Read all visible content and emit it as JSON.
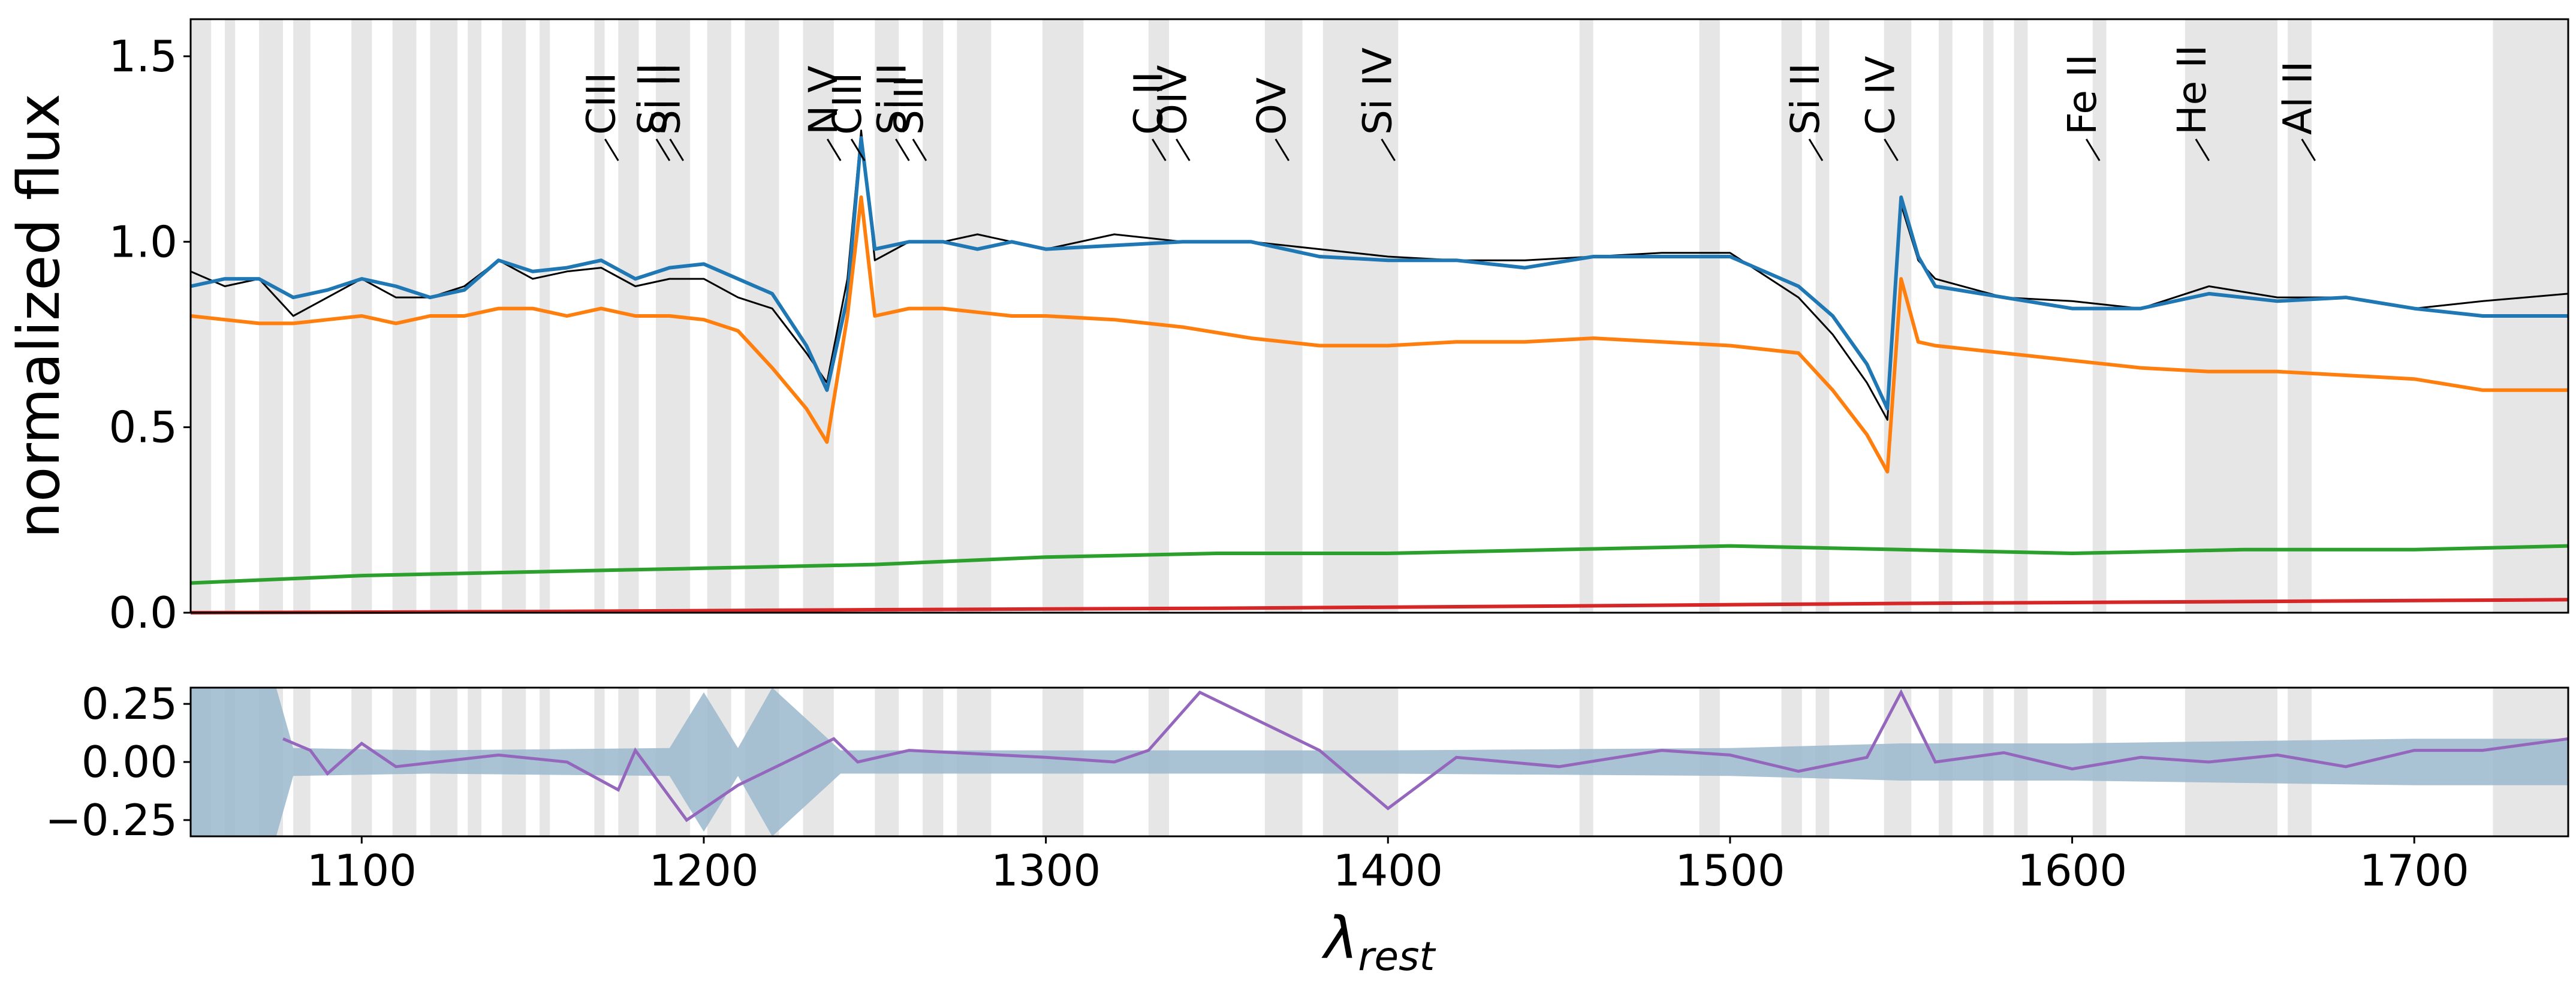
{
  "chart_data": [
    {
      "type": "line",
      "ylabel": "normalized flux",
      "xlim": [
        1050,
        1745
      ],
      "ylim": [
        0,
        1.6
      ],
      "yticks": [
        {
          "value": 0.0,
          "label": "0.0"
        },
        {
          "value": 0.5,
          "label": "0.5"
        },
        {
          "value": 1.0,
          "label": "1.0"
        },
        {
          "value": 1.5,
          "label": "1.5"
        }
      ],
      "grid": false,
      "masked_regions": [
        [
          1050,
          1056
        ],
        [
          1060,
          1063
        ],
        [
          1070,
          1077
        ],
        [
          1080,
          1085
        ],
        [
          1097,
          1103
        ],
        [
          1109,
          1116
        ],
        [
          1120,
          1128
        ],
        [
          1131,
          1135
        ],
        [
          1141,
          1148
        ],
        [
          1152,
          1155
        ],
        [
          1168,
          1171
        ],
        [
          1175,
          1181
        ],
        [
          1186,
          1196
        ],
        [
          1201,
          1208
        ],
        [
          1212,
          1222
        ],
        [
          1229,
          1238
        ],
        [
          1250,
          1257
        ],
        [
          1264,
          1270
        ],
        [
          1274,
          1284
        ],
        [
          1299,
          1311
        ],
        [
          1330,
          1336
        ],
        [
          1364,
          1375
        ],
        [
          1381,
          1403
        ],
        [
          1456,
          1460
        ],
        [
          1491,
          1497
        ],
        [
          1515,
          1521
        ],
        [
          1525,
          1529
        ],
        [
          1545,
          1553
        ],
        [
          1561,
          1565
        ],
        [
          1574,
          1577
        ],
        [
          1583,
          1587
        ],
        [
          1606,
          1610
        ],
        [
          1633,
          1660
        ],
        [
          1663,
          1670
        ],
        [
          1723,
          1745
        ]
      ],
      "line_markers": [
        {
          "label": "CIII",
          "wavelength": 1175
        },
        {
          "label": "Si II",
          "wavelength": 1190
        },
        {
          "label": "Si II",
          "wavelength": 1194
        },
        {
          "label": "N V",
          "wavelength": 1240
        },
        {
          "label": "CIII",
          "wavelength": 1247
        },
        {
          "label": "Si II",
          "wavelength": 1260
        },
        {
          "label": "SiII",
          "wavelength": 1265
        },
        {
          "label": "C II",
          "wavelength": 1335
        },
        {
          "label": "OIV",
          "wavelength": 1342
        },
        {
          "label": "OV",
          "wavelength": 1371
        },
        {
          "label": "Si IV",
          "wavelength": 1402
        },
        {
          "label": "Si II",
          "wavelength": 1527
        },
        {
          "label": "C IV",
          "wavelength": 1549
        },
        {
          "label": "Fe II",
          "wavelength": 1608
        },
        {
          "label": "He II",
          "wavelength": 1640
        },
        {
          "label": "Al II",
          "wavelength": 1671
        }
      ],
      "series": [
        {
          "color": "#000000",
          "x": [
            1050,
            1060,
            1070,
            1080,
            1090,
            1100,
            1110,
            1120,
            1130,
            1140,
            1150,
            1160,
            1170,
            1180,
            1190,
            1200,
            1210,
            1220,
            1230,
            1236,
            1242,
            1246,
            1250,
            1260,
            1270,
            1280,
            1290,
            1300,
            1320,
            1340,
            1360,
            1380,
            1400,
            1420,
            1440,
            1460,
            1480,
            1500,
            1520,
            1530,
            1540,
            1546,
            1550,
            1555,
            1560,
            1580,
            1600,
            1620,
            1640,
            1660,
            1680,
            1700,
            1720,
            1745
          ],
          "y": [
            0.92,
            0.88,
            0.9,
            0.8,
            0.85,
            0.9,
            0.85,
            0.85,
            0.88,
            0.95,
            0.9,
            0.92,
            0.93,
            0.88,
            0.9,
            0.9,
            0.85,
            0.82,
            0.7,
            0.62,
            0.9,
            1.3,
            0.95,
            1.0,
            1.0,
            1.02,
            1.0,
            0.98,
            1.02,
            1.0,
            1.0,
            0.98,
            0.96,
            0.95,
            0.95,
            0.96,
            0.97,
            0.97,
            0.85,
            0.75,
            0.62,
            0.52,
            1.1,
            0.95,
            0.9,
            0.85,
            0.84,
            0.82,
            0.88,
            0.85,
            0.85,
            0.82,
            0.84,
            0.86
          ]
        },
        {
          "color": "#1f77b4",
          "x": [
            1050,
            1060,
            1070,
            1080,
            1090,
            1100,
            1110,
            1120,
            1130,
            1140,
            1150,
            1160,
            1170,
            1180,
            1190,
            1200,
            1210,
            1220,
            1230,
            1236,
            1242,
            1246,
            1250,
            1260,
            1270,
            1280,
            1290,
            1300,
            1320,
            1340,
            1360,
            1380,
            1400,
            1420,
            1440,
            1460,
            1480,
            1500,
            1520,
            1530,
            1540,
            1546,
            1550,
            1555,
            1560,
            1580,
            1600,
            1620,
            1640,
            1660,
            1680,
            1700,
            1720,
            1745
          ],
          "y": [
            0.88,
            0.9,
            0.9,
            0.85,
            0.87,
            0.9,
            0.88,
            0.85,
            0.87,
            0.95,
            0.92,
            0.93,
            0.95,
            0.9,
            0.93,
            0.94,
            0.9,
            0.86,
            0.72,
            0.6,
            0.85,
            1.28,
            0.98,
            1.0,
            1.0,
            0.98,
            1.0,
            0.98,
            0.99,
            1.0,
            1.0,
            0.96,
            0.95,
            0.95,
            0.93,
            0.96,
            0.96,
            0.96,
            0.88,
            0.8,
            0.67,
            0.55,
            1.12,
            0.96,
            0.88,
            0.85,
            0.82,
            0.82,
            0.86,
            0.84,
            0.85,
            0.82,
            0.8,
            0.8
          ]
        },
        {
          "color": "#ff7f0e",
          "x": [
            1050,
            1060,
            1070,
            1080,
            1090,
            1100,
            1110,
            1120,
            1130,
            1140,
            1150,
            1160,
            1170,
            1180,
            1190,
            1200,
            1210,
            1220,
            1230,
            1236,
            1242,
            1246,
            1250,
            1260,
            1270,
            1280,
            1290,
            1300,
            1320,
            1340,
            1360,
            1380,
            1400,
            1420,
            1440,
            1460,
            1480,
            1500,
            1520,
            1530,
            1540,
            1546,
            1550,
            1555,
            1560,
            1580,
            1600,
            1620,
            1640,
            1660,
            1680,
            1700,
            1720,
            1745
          ],
          "y": [
            0.8,
            0.79,
            0.78,
            0.78,
            0.79,
            0.8,
            0.78,
            0.8,
            0.8,
            0.82,
            0.82,
            0.8,
            0.82,
            0.8,
            0.8,
            0.79,
            0.76,
            0.66,
            0.55,
            0.46,
            0.8,
            1.12,
            0.8,
            0.82,
            0.82,
            0.81,
            0.8,
            0.8,
            0.79,
            0.77,
            0.74,
            0.72,
            0.72,
            0.73,
            0.73,
            0.74,
            0.73,
            0.72,
            0.7,
            0.6,
            0.48,
            0.38,
            0.9,
            0.73,
            0.72,
            0.7,
            0.68,
            0.66,
            0.65,
            0.65,
            0.64,
            0.63,
            0.6,
            0.6
          ]
        },
        {
          "color": "#2ca02c",
          "x": [
            1050,
            1100,
            1150,
            1200,
            1250,
            1300,
            1350,
            1400,
            1450,
            1500,
            1550,
            1600,
            1650,
            1700,
            1745
          ],
          "y": [
            0.08,
            0.1,
            0.11,
            0.12,
            0.13,
            0.15,
            0.16,
            0.16,
            0.17,
            0.18,
            0.17,
            0.16,
            0.17,
            0.17,
            0.18
          ]
        },
        {
          "color": "#d62728",
          "x": [
            1050,
            1150,
            1250,
            1350,
            1450,
            1550,
            1650,
            1745
          ],
          "y": [
            0.0,
            0.003,
            0.008,
            0.012,
            0.018,
            0.025,
            0.03,
            0.035
          ]
        }
      ]
    },
    {
      "type": "line",
      "xlabel": "λrest",
      "xlim": [
        1050,
        1745
      ],
      "ylim": [
        -0.32,
        0.32
      ],
      "xticks": [
        {
          "value": 1100,
          "label": "1100"
        },
        {
          "value": 1200,
          "label": "1200"
        },
        {
          "value": 1300,
          "label": "1300"
        },
        {
          "value": 1400,
          "label": "1400"
        },
        {
          "value": 1500,
          "label": "1500"
        },
        {
          "value": 1600,
          "label": "1600"
        },
        {
          "value": 1700,
          "label": "1700"
        }
      ],
      "yticks": [
        {
          "value": 0.25,
          "label": "0.25"
        },
        {
          "value": 0.0,
          "label": "0.00"
        },
        {
          "value": -0.25,
          "label": "−0.25"
        }
      ],
      "uncertainty_band": {
        "color": "#9ab7cc",
        "x": [
          1050,
          1075,
          1080,
          1120,
          1190,
          1200,
          1210,
          1220,
          1240,
          1300,
          1400,
          1500,
          1550,
          1600,
          1700,
          1745
        ],
        "half_width": [
          0.32,
          0.32,
          0.06,
          0.05,
          0.06,
          0.3,
          0.06,
          0.32,
          0.05,
          0.05,
          0.05,
          0.06,
          0.08,
          0.08,
          0.1,
          0.1
        ]
      },
      "residual_series": {
        "color": "#9467bd",
        "x": [
          1077,
          1085,
          1090,
          1100,
          1110,
          1140,
          1160,
          1175,
          1180,
          1195,
          1210,
          1238,
          1245,
          1260,
          1300,
          1320,
          1330,
          1345,
          1380,
          1400,
          1420,
          1450,
          1480,
          1500,
          1520,
          1540,
          1550,
          1560,
          1580,
          1600,
          1620,
          1640,
          1660,
          1680,
          1700,
          1720,
          1745
        ],
        "y": [
          0.1,
          0.05,
          -0.05,
          0.08,
          -0.02,
          0.03,
          0.0,
          -0.12,
          0.05,
          -0.25,
          -0.1,
          0.1,
          0.0,
          0.05,
          0.02,
          0.0,
          0.05,
          0.3,
          0.05,
          -0.2,
          0.02,
          -0.02,
          0.05,
          0.03,
          -0.04,
          0.02,
          0.3,
          0.0,
          0.04,
          -0.03,
          0.02,
          0.0,
          0.03,
          -0.02,
          0.05,
          0.05,
          0.1
        ]
      }
    }
  ]
}
